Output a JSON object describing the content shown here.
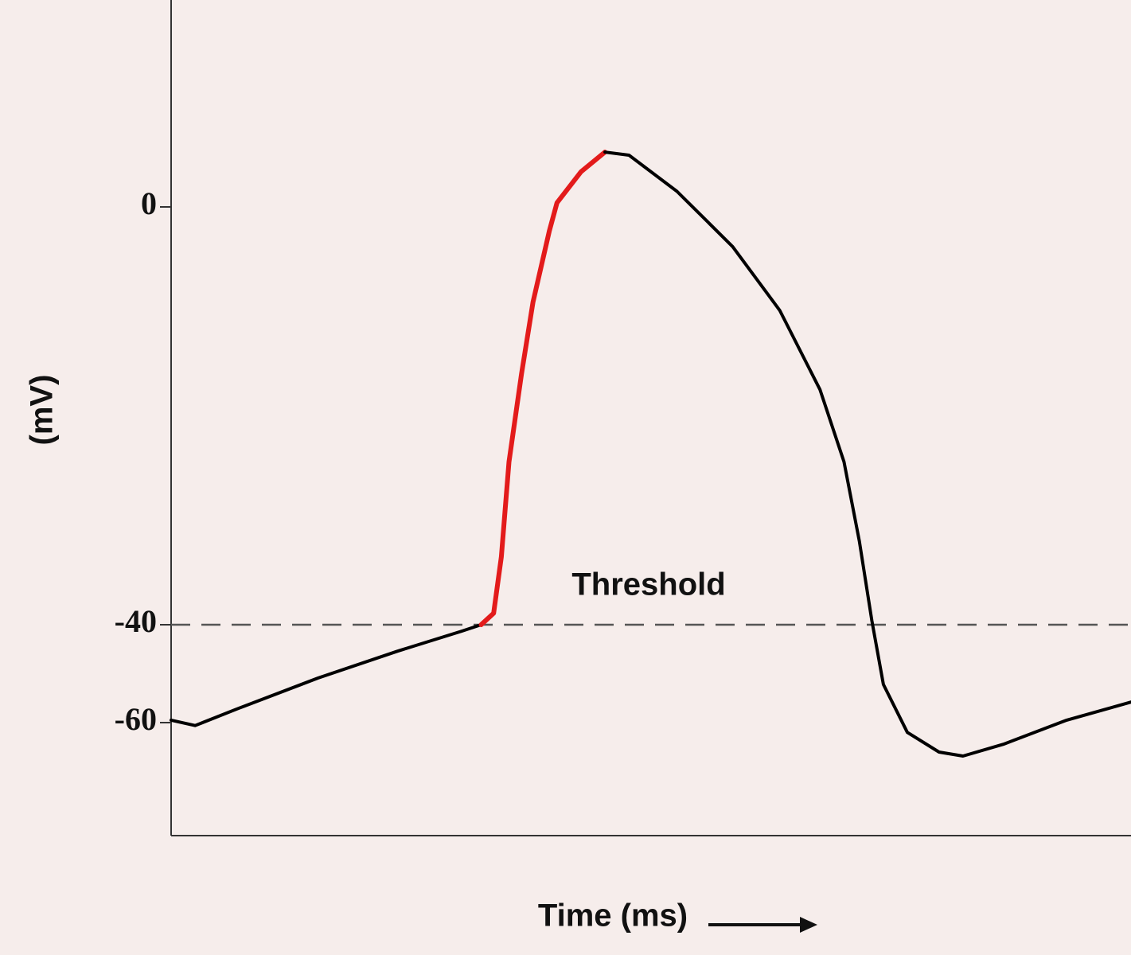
{
  "chart_data": {
    "type": "line",
    "xlabel": "Time (ms)",
    "ylabel": "(mV)",
    "xlim": [
      0,
      100
    ],
    "ylim": [
      -83,
      20
    ],
    "yticks": [
      -60,
      -40,
      0
    ],
    "threshold": {
      "text": "Threshold",
      "y": -40
    },
    "series": [
      {
        "color": "#000000",
        "x": [
          0,
          2.5,
          7,
          15.3,
          23.6,
          30.3,
          32.3
        ],
        "values": [
          -59.5,
          -60.6,
          -57.1,
          -50.9,
          -45.4,
          -41.3,
          -40
        ]
      },
      {
        "color": "#e31b1b",
        "x": [
          32.3,
          33.6,
          34.4,
          35.2,
          36.5,
          37.7,
          39.4,
          40.2,
          42.7,
          45.2
        ],
        "values": [
          -40,
          -38.9,
          -33.5,
          -24.4,
          -16,
          -9.1,
          -2.3,
          0.4,
          3.4,
          5.3
        ]
      },
      {
        "color": "#000000",
        "x": [
          45.2,
          47.7,
          52.7,
          58.5,
          63.4,
          67.6,
          70.1,
          71.7,
          73,
          74.2,
          76.7,
          80,
          82.5,
          86.7,
          93.3,
          100
        ],
        "values": [
          5.3,
          5,
          1.5,
          -3.8,
          -9.9,
          -17.5,
          -24.4,
          -32,
          -39.6,
          -52.2,
          -62,
          -66,
          -66.8,
          -64.4,
          -59.5,
          -55.8
        ]
      }
    ]
  }
}
